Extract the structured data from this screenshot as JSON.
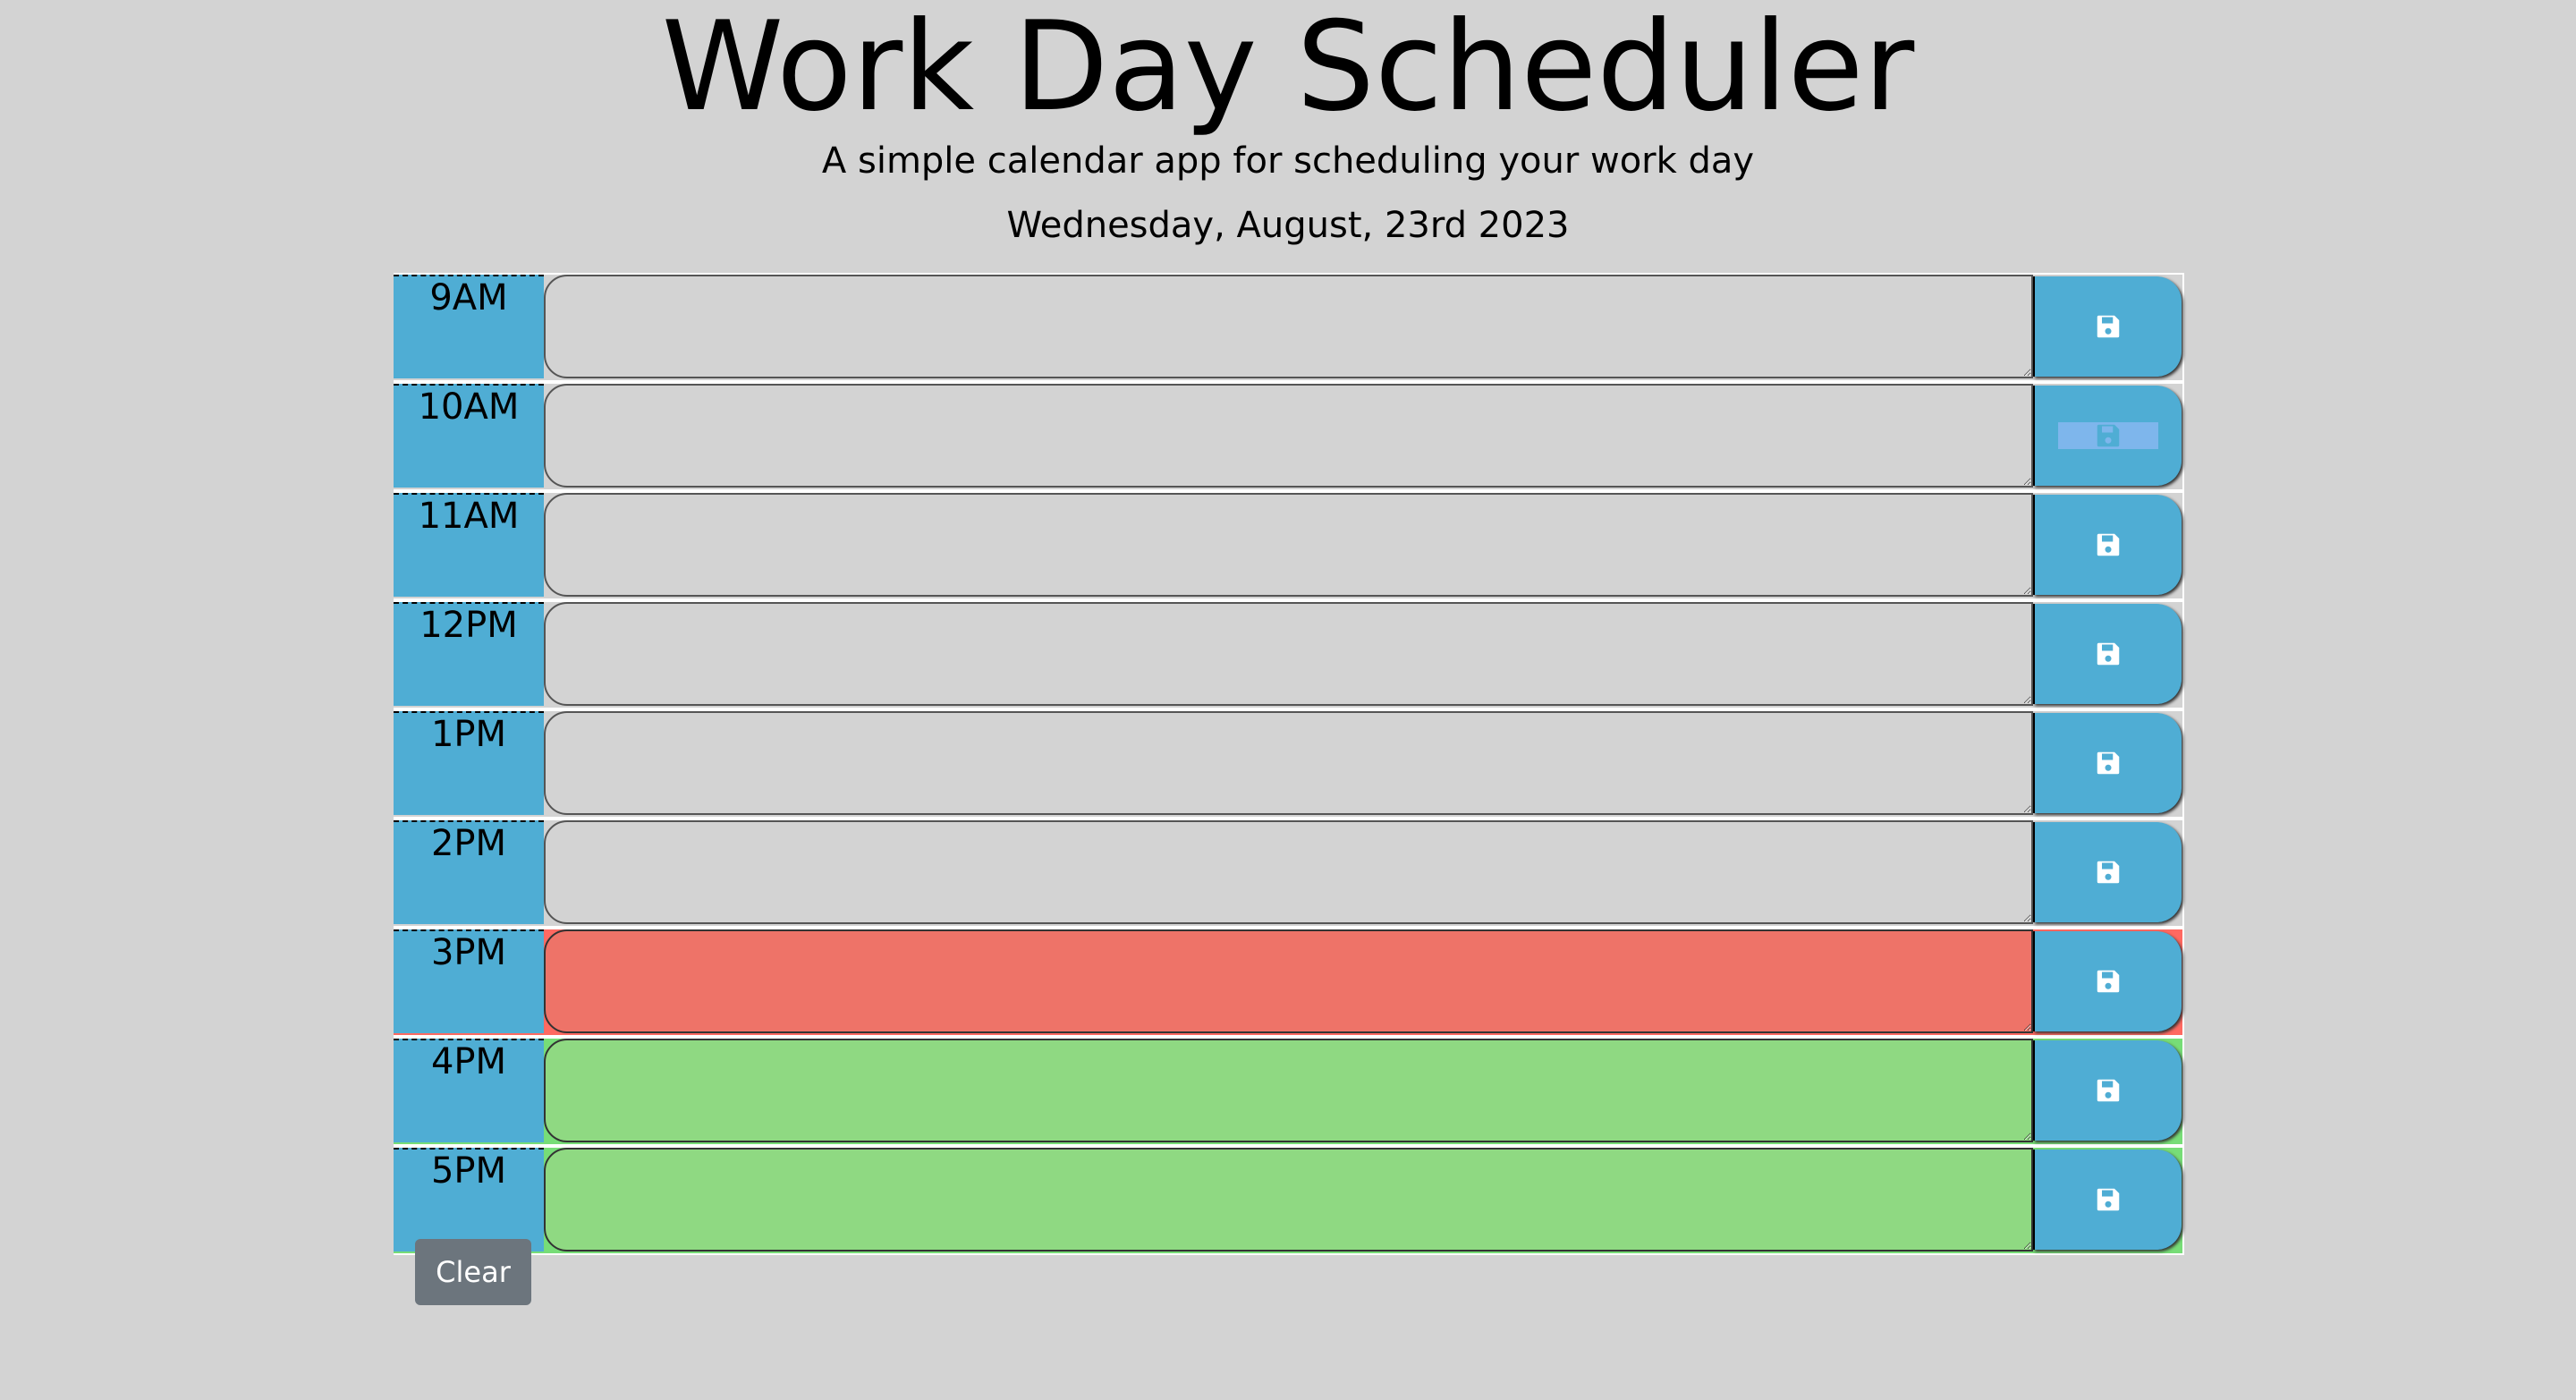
{
  "header": {
    "title": "Work Day Scheduler",
    "subtitle": "A simple calendar app for scheduling your work day",
    "current_date": "Wednesday, August, 23rd 2023"
  },
  "timeblocks": [
    {
      "hour": "9AM",
      "state": "past",
      "text": ""
    },
    {
      "hour": "10AM",
      "state": "past",
      "text": ""
    },
    {
      "hour": "11AM",
      "state": "past",
      "text": ""
    },
    {
      "hour": "12PM",
      "state": "past",
      "text": ""
    },
    {
      "hour": "1PM",
      "state": "past",
      "text": ""
    },
    {
      "hour": "2PM",
      "state": "past",
      "text": ""
    },
    {
      "hour": "3PM",
      "state": "present",
      "text": ""
    },
    {
      "hour": "4PM",
      "state": "future",
      "text": ""
    },
    {
      "hour": "5PM",
      "state": "future",
      "text": ""
    }
  ],
  "save_icon": "floppy-disk-icon",
  "clear_button_label": "Clear",
  "colors": {
    "background": "#d3d3d3",
    "hour_block": "#4fadd4",
    "past": "#d3d3d3",
    "present": "#ee7368",
    "future": "#8fd982",
    "clear_button": "#6c757d"
  }
}
